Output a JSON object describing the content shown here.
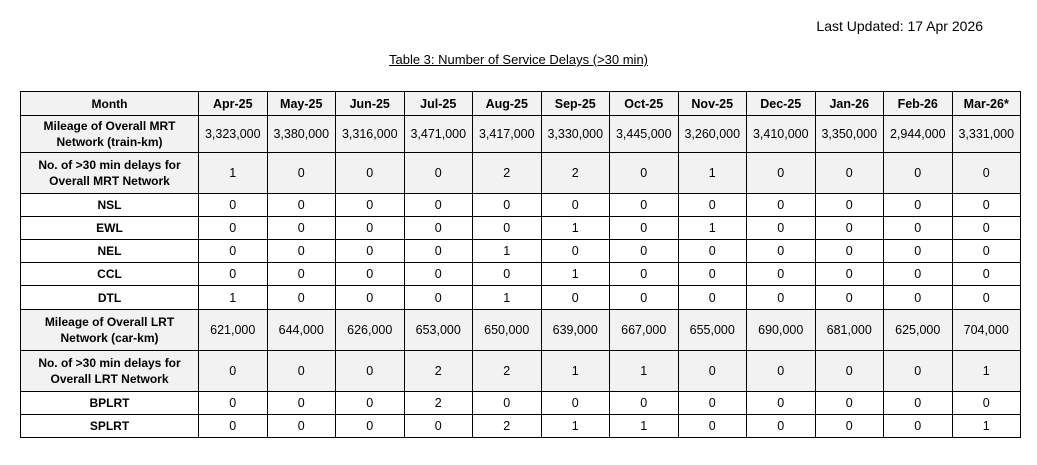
{
  "header": {
    "last_updated": "Last Updated: 17 Apr 2026",
    "title": "Table 3: Number of Service Delays (>30 min)"
  },
  "table": {
    "header": [
      "Month",
      "Apr-25",
      "May-25",
      "Jun-25",
      "Jul-25",
      "Aug-25",
      "Sep-25",
      "Oct-25",
      "Nov-25",
      "Dec-25",
      "Jan-26",
      "Feb-26",
      "Mar-26*"
    ],
    "rows": [
      [
        "Mileage of Overall MRT Network (train-km)",
        "3,323,000",
        "3,380,000",
        "3,316,000",
        "3,471,000",
        "3,417,000",
        "3,330,000",
        "3,445,000",
        "3,260,000",
        "3,410,000",
        "3,350,000",
        "2,944,000",
        "3,331,000"
      ],
      [
        "No. of >30 min delays for Overall MRT Network",
        "1",
        "0",
        "0",
        "0",
        "2",
        "2",
        "0",
        "1",
        "0",
        "0",
        "0",
        "0"
      ],
      [
        "NSL",
        "0",
        "0",
        "0",
        "0",
        "0",
        "0",
        "0",
        "0",
        "0",
        "0",
        "0",
        "0"
      ],
      [
        "EWL",
        "0",
        "0",
        "0",
        "0",
        "0",
        "1",
        "0",
        "1",
        "0",
        "0",
        "0",
        "0"
      ],
      [
        "NEL",
        "0",
        "0",
        "0",
        "0",
        "1",
        "0",
        "0",
        "0",
        "0",
        "0",
        "0",
        "0"
      ],
      [
        "CCL",
        "0",
        "0",
        "0",
        "0",
        "0",
        "1",
        "0",
        "0",
        "0",
        "0",
        "0",
        "0"
      ],
      [
        "DTL",
        "1",
        "0",
        "0",
        "0",
        "1",
        "0",
        "0",
        "0",
        "0",
        "0",
        "0",
        "0"
      ],
      [
        "Mileage of Overall LRT Network (car-km)",
        "621,000",
        "644,000",
        "626,000",
        "653,000",
        "650,000",
        "639,000",
        "667,000",
        "655,000",
        "690,000",
        "681,000",
        "625,000",
        "704,000"
      ],
      [
        "No. of >30 min delays for Overall LRT Network",
        "0",
        "0",
        "0",
        "2",
        "2",
        "1",
        "1",
        "0",
        "0",
        "0",
        "0",
        "1"
      ],
      [
        "BPLRT",
        "0",
        "0",
        "0",
        "2",
        "0",
        "0",
        "0",
        "0",
        "0",
        "0",
        "0",
        "0"
      ],
      [
        "SPLRT",
        "0",
        "0",
        "0",
        "0",
        "2",
        "1",
        "1",
        "0",
        "0",
        "0",
        "0",
        "1"
      ]
    ]
  }
}
